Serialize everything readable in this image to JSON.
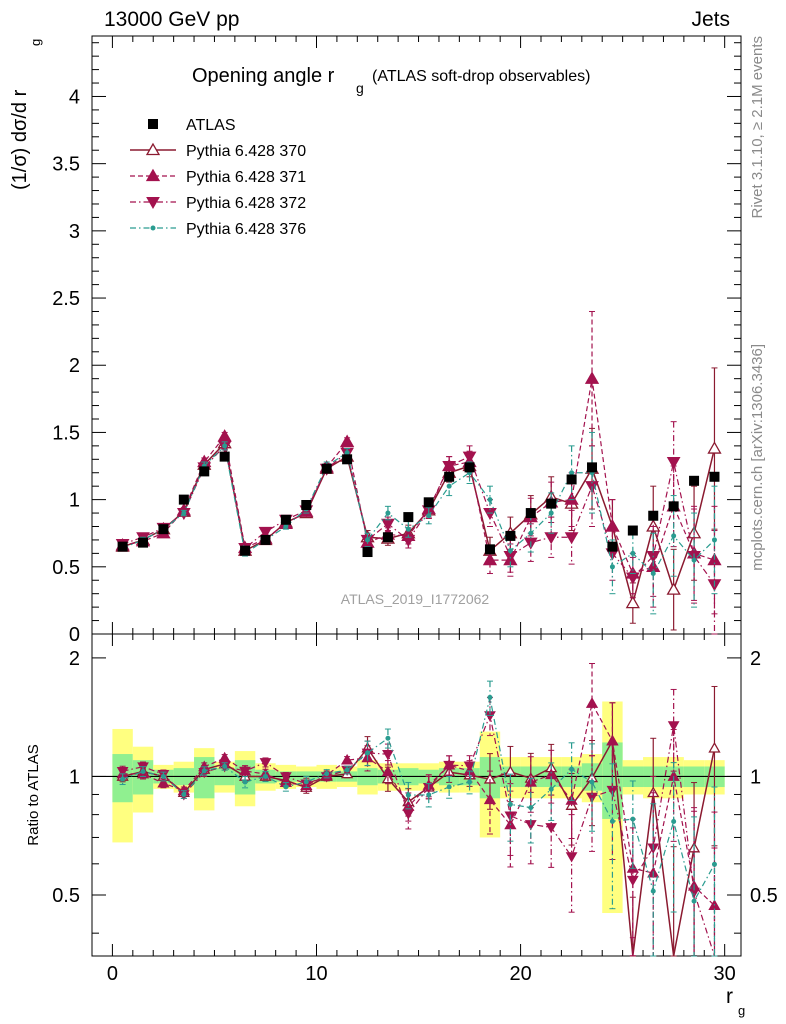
{
  "header": {
    "left": "13000 GeV pp",
    "right": "Jets"
  },
  "side_labels": {
    "rivet": "Rivet 3.1.10, ≥ 2.1M events",
    "mcplots": "mcplots.cern.ch [arXiv:1306.3436]"
  },
  "chart_data": {
    "type": "scatter",
    "title_main": "Opening angle r",
    "title_sub": "g",
    "title_rest": "(ATLAS soft-drop observables)",
    "watermark": "ATLAS_2019_I1772062",
    "ylabel_main": "(1/σ) dσ/d r",
    "ylabel_sub": "g",
    "ratio_ylabel": "Ratio to ATLAS",
    "xlabel_main": "r",
    "xlabel_sub": "g",
    "xlim": [
      -1,
      30.8
    ],
    "ylim": [
      0,
      4.45
    ],
    "ratio_ylim": [
      0.35,
      2.3
    ],
    "xticks": [
      0,
      10,
      20,
      30
    ],
    "yticks": [
      0,
      0.5,
      1,
      1.5,
      2,
      2.5,
      3,
      3.5,
      4
    ],
    "ytick_labels": [
      "0",
      "0.5",
      "1",
      "1.5",
      "2",
      "2.5",
      "3",
      "3.5",
      "4"
    ],
    "ratio_yticks": [
      0.5,
      1,
      2
    ],
    "ratio_ytick_labels": [
      "0.5",
      "1",
      "2"
    ],
    "x": [
      0.5,
      1.5,
      2.5,
      3.5,
      4.5,
      5.5,
      6.5,
      7.5,
      8.5,
      9.5,
      10.5,
      11.5,
      12.5,
      13.5,
      14.5,
      15.5,
      16.5,
      17.5,
      18.5,
      19.5,
      20.5,
      21.5,
      22.5,
      23.5,
      24.5,
      25.5,
      26.5,
      27.5,
      28.5,
      29.5
    ],
    "band_inner": [
      0.14,
      0.1,
      0.04,
      0.05,
      0.12,
      0.05,
      0.1,
      0.04,
      0.03,
      0.03,
      0.03,
      0.03,
      0.05,
      0.04,
      0.05,
      0.04,
      0.05,
      0.05,
      0.12,
      0.06,
      0.06,
      0.06,
      0.06,
      0.08,
      0.22,
      0.06,
      0.06,
      0.06,
      0.06,
      0.06
    ],
    "band_outer": [
      0.32,
      0.19,
      0.07,
      0.09,
      0.18,
      0.09,
      0.16,
      0.08,
      0.07,
      0.06,
      0.07,
      0.06,
      0.1,
      0.08,
      0.08,
      0.08,
      0.09,
      0.09,
      0.3,
      0.12,
      0.12,
      0.12,
      0.12,
      0.14,
      0.55,
      0.1,
      0.12,
      0.12,
      0.1,
      0.1
    ],
    "legend": {
      "position": "top-left",
      "entries": [
        "ATLAS",
        "Pythia 6.428 370",
        "Pythia 6.428 371",
        "Pythia 6.428 372",
        "Pythia 6.428 376"
      ]
    },
    "series": [
      {
        "name": "ATLAS",
        "color": "#000000",
        "marker": "square",
        "style": "none",
        "values": [
          0.65,
          0.68,
          0.78,
          1.0,
          1.21,
          1.32,
          0.62,
          0.7,
          0.85,
          0.96,
          1.23,
          1.3,
          0.61,
          0.72,
          0.87,
          0.98,
          1.17,
          1.24,
          0.63,
          0.73,
          0.9,
          0.97,
          1.15,
          1.24,
          0.65,
          0.77,
          0.88,
          0.95,
          1.14,
          1.17
        ]
      },
      {
        "name": "Pythia 6.428 370",
        "color": "#8b1a30",
        "marker": "triangle-up-open",
        "style": "solid",
        "values": [
          0.65,
          0.7,
          0.78,
          0.91,
          1.26,
          1.42,
          0.62,
          0.7,
          0.83,
          0.9,
          1.23,
          1.32,
          0.72,
          0.71,
          0.75,
          0.92,
          1.2,
          1.25,
          0.62,
          0.75,
          0.89,
          1.02,
          0.97,
          1.23,
          0.8,
          0.23,
          0.8,
          0.33,
          0.75,
          1.38
        ],
        "errors": [
          0.02,
          0.02,
          0.02,
          0.02,
          0.03,
          0.03,
          0.02,
          0.02,
          0.02,
          0.03,
          0.03,
          0.03,
          0.05,
          0.05,
          0.06,
          0.06,
          0.07,
          0.08,
          0.1,
          0.12,
          0.14,
          0.15,
          0.2,
          0.3,
          0.2,
          0.15,
          0.3,
          0.3,
          0.35,
          0.6
        ]
      },
      {
        "name": "Pythia 6.428 371",
        "color": "#a3124e",
        "marker": "triangle-up",
        "style": "dashed",
        "values": [
          0.66,
          0.69,
          0.75,
          0.92,
          1.28,
          1.47,
          0.64,
          0.71,
          0.82,
          0.91,
          1.24,
          1.43,
          0.68,
          0.74,
          0.73,
          0.93,
          1.25,
          1.28,
          0.55,
          0.55,
          0.87,
          0.98,
          1.0,
          1.9,
          0.8,
          0.45,
          0.5,
          0.95,
          0.6,
          0.55
        ],
        "errors": [
          0.02,
          0.02,
          0.02,
          0.02,
          0.03,
          0.03,
          0.02,
          0.02,
          0.02,
          0.03,
          0.03,
          0.03,
          0.05,
          0.05,
          0.06,
          0.06,
          0.07,
          0.08,
          0.1,
          0.12,
          0.14,
          0.15,
          0.2,
          0.5,
          0.2,
          0.15,
          0.3,
          0.3,
          0.35,
          0.4
        ]
      },
      {
        "name": "Pythia 6.428 372",
        "color": "#a3124e",
        "marker": "triangle-down",
        "style": "dashdot",
        "values": [
          0.67,
          0.72,
          0.79,
          0.9,
          1.24,
          1.4,
          0.64,
          0.76,
          0.85,
          0.92,
          1.23,
          1.35,
          0.7,
          0.82,
          0.7,
          0.92,
          1.25,
          1.32,
          0.9,
          0.58,
          0.68,
          0.72,
          0.72,
          1.1,
          0.6,
          0.42,
          0.58,
          1.28,
          0.58,
          0.37
        ],
        "errors": [
          0.02,
          0.02,
          0.02,
          0.02,
          0.03,
          0.03,
          0.02,
          0.02,
          0.02,
          0.03,
          0.03,
          0.03,
          0.05,
          0.05,
          0.06,
          0.06,
          0.07,
          0.08,
          0.1,
          0.12,
          0.14,
          0.15,
          0.2,
          0.3,
          0.2,
          0.15,
          0.3,
          0.3,
          0.35,
          0.4
        ]
      },
      {
        "name": "Pythia 6.428 376",
        "color": "#2a9c90",
        "marker": "dot",
        "style": "dashdot",
        "values": [
          0.64,
          0.7,
          0.78,
          0.9,
          1.25,
          1.4,
          0.6,
          0.7,
          0.8,
          0.93,
          1.25,
          1.35,
          0.7,
          0.9,
          0.78,
          0.88,
          1.1,
          1.2,
          1.0,
          0.62,
          0.75,
          0.9,
          1.2,
          1.2,
          0.5,
          0.6,
          0.45,
          0.73,
          0.55,
          0.7
        ],
        "errors": [
          0.02,
          0.02,
          0.02,
          0.02,
          0.03,
          0.03,
          0.02,
          0.02,
          0.02,
          0.03,
          0.03,
          0.03,
          0.05,
          0.05,
          0.06,
          0.06,
          0.07,
          0.08,
          0.1,
          0.12,
          0.14,
          0.15,
          0.2,
          0.3,
          0.2,
          0.15,
          0.3,
          0.3,
          0.35,
          0.4
        ]
      }
    ],
    "ratio_reference": 1
  }
}
